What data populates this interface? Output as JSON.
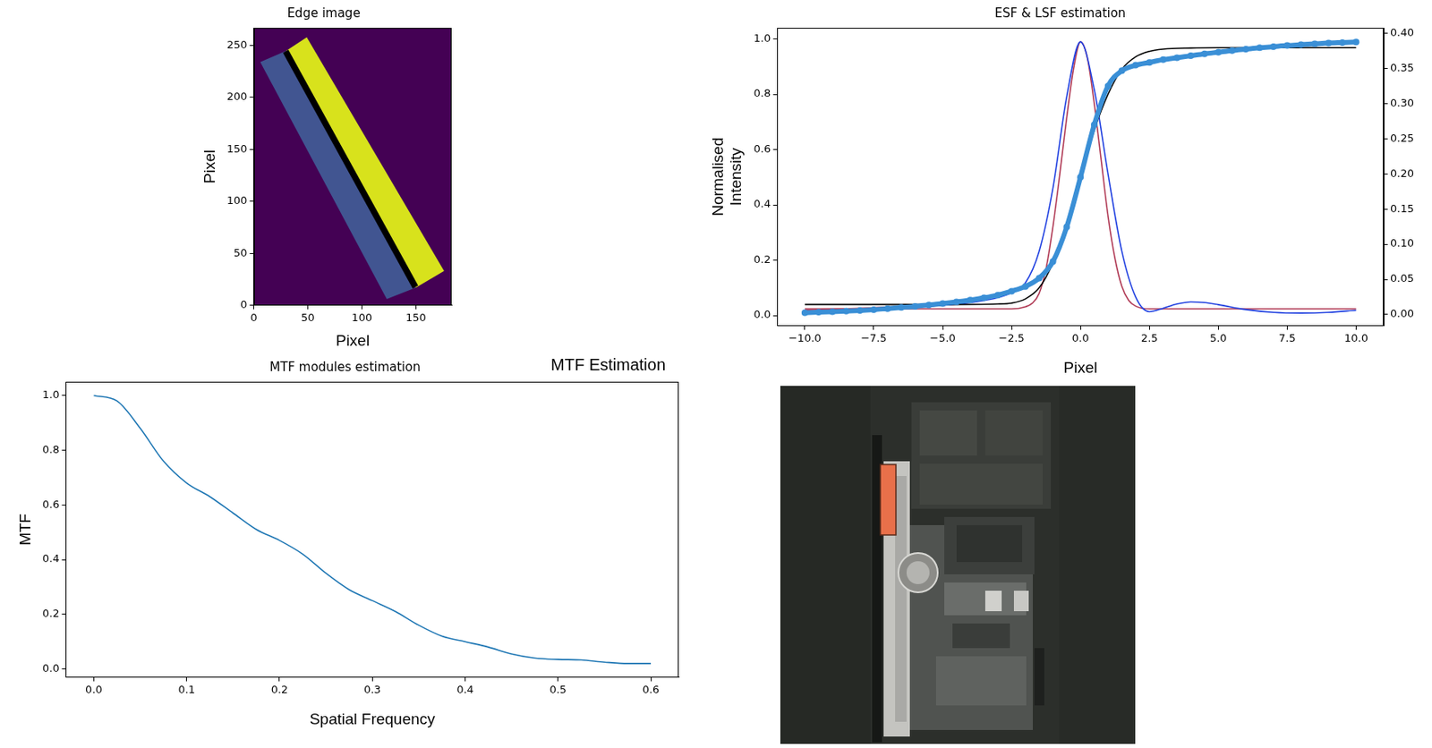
{
  "chart_data": [
    {
      "type": "image",
      "title": "Edge image",
      "x_label": "Pixel",
      "y_label": "Pixel",
      "xlim": [
        0,
        183
      ],
      "ylim": [
        0,
        267
      ],
      "xticks": [
        0,
        50,
        100,
        150
      ],
      "yticks": [
        0,
        50,
        100,
        150,
        200,
        250
      ],
      "color": "#440154",
      "regions": [
        {
          "color": "#415591",
          "x": [
            6,
            30,
            150,
            123
          ],
          "y": [
            234,
            245,
            17,
            6
          ]
        },
        {
          "color": "#d8e21c",
          "x": [
            30,
            49,
            176,
            150
          ],
          "y": [
            245,
            258,
            33,
            17
          ]
        },
        {
          "color": "#000000",
          "x": [
            27,
            32,
            152,
            147
          ],
          "y": [
            243,
            246,
            19,
            16
          ]
        }
      ]
    },
    {
      "type": "line",
      "title": "ESF & LSF estimation",
      "x_label": "Pixel",
      "y_label": "Normalised\nIntensity",
      "xlim": [
        -11,
        11
      ],
      "ylim": [
        -0.037,
        1.04
      ],
      "y2lim": [
        -0.016,
        0.408
      ],
      "xticks": [
        {
          "value": -10,
          "label": "−10.0"
        },
        {
          "value": -7.5,
          "label": "−7.5"
        },
        {
          "value": -5,
          "label": "−5.0"
        },
        {
          "value": -2.5,
          "label": "−2.5"
        },
        {
          "value": 0,
          "label": "0.0"
        },
        2.5,
        {
          "value": 5,
          "label": "5.0"
        },
        7.5,
        {
          "value": 10,
          "label": "10.0"
        }
      ],
      "yticks": [
        {
          "value": 0,
          "label": "0.0"
        },
        0.2,
        0.4,
        0.6,
        0.8,
        {
          "value": 1,
          "label": "1.0"
        }
      ],
      "y2ticks": [
        {
          "value": 0,
          "label": "0.00"
        },
        0.05,
        {
          "value": 0.1,
          "label": "0.10"
        },
        0.15,
        {
          "value": 0.2,
          "label": "0.20"
        },
        0.25,
        {
          "value": 0.3,
          "label": "0.30"
        },
        0.35,
        {
          "value": 0.4,
          "label": "0.40"
        }
      ],
      "series": [
        {
          "type": "scatter",
          "color": "#3a8fd6",
          "marker": "o",
          "line_style": "solid",
          "x": [
            -10,
            -9.5,
            -9,
            -8.5,
            -8,
            -7.5,
            -7,
            -6.5,
            -6,
            -5.5,
            -5,
            -4.5,
            -4,
            -3.5,
            -3,
            -2.5,
            -2,
            -1.5,
            -1,
            -0.5,
            0,
            0.5,
            1,
            1.5,
            2,
            2.5,
            3,
            3.5,
            4,
            4.5,
            5,
            5.5,
            6,
            6.5,
            7,
            7.5,
            8,
            8.5,
            9,
            9.5,
            10
          ],
          "values": [
            0.01,
            0.012,
            0.014,
            0.016,
            0.018,
            0.021,
            0.025,
            0.029,
            0.033,
            0.038,
            0.043,
            0.049,
            0.056,
            0.064,
            0.074,
            0.088,
            0.105,
            0.135,
            0.195,
            0.32,
            0.5,
            0.69,
            0.83,
            0.885,
            0.905,
            0.915,
            0.925,
            0.932,
            0.939,
            0.946,
            0.952,
            0.958,
            0.963,
            0.968,
            0.972,
            0.976,
            0.979,
            0.982,
            0.985,
            0.987,
            0.989
          ]
        },
        {
          "type": "line",
          "color": "#000000",
          "line_style": "solid",
          "x": [
            -10,
            -7.5,
            -5,
            -3,
            -2.5,
            -2,
            -1.5,
            -1,
            -0.5,
            0,
            0.5,
            1,
            1.5,
            2,
            2.5,
            3,
            4,
            5,
            7.5,
            10
          ],
          "values": [
            0.04,
            0.04,
            0.04,
            0.042,
            0.045,
            0.06,
            0.1,
            0.19,
            0.33,
            0.5,
            0.67,
            0.8,
            0.89,
            0.935,
            0.955,
            0.963,
            0.967,
            0.968,
            0.968,
            0.968
          ]
        },
        {
          "type": "line",
          "color": "#c0304a",
          "line_style": "solid",
          "x": [
            -10,
            -7.5,
            -5,
            -4,
            -3,
            -2.5,
            -2,
            -1.5,
            -1,
            -0.5,
            0,
            0.5,
            1,
            1.5,
            2,
            2.5,
            3,
            4,
            5,
            6,
            7.5,
            9,
            10
          ],
          "values": [
            0.02,
            0.028,
            0.044,
            0.055,
            0.073,
            0.088,
            0.107,
            0.138,
            0.2,
            0.33,
            0.51,
            0.69,
            0.83,
            0.887,
            0.905,
            0.915,
            0.924,
            0.938,
            0.951,
            0.962,
            0.975,
            0.984,
            0.987
          ]
        },
        {
          "type": "line",
          "color": "#2040e0",
          "line_style": "solid",
          "axis": "y2",
          "x": [
            -10,
            -7.5,
            -5,
            -4,
            -3,
            -2.5,
            -2,
            -1.5,
            -1,
            -0.5,
            0,
            0.5,
            1,
            1.5,
            2,
            2.5,
            3,
            3.5,
            4,
            4.5,
            5,
            6,
            7,
            8,
            9,
            10
          ],
          "values": [
            0.004,
            0.008,
            0.013,
            0.017,
            0.024,
            0.031,
            0.045,
            0.09,
            0.18,
            0.31,
            0.388,
            0.32,
            0.2,
            0.09,
            0.025,
            0.004,
            0.009,
            0.015,
            0.018,
            0.017,
            0.014,
            0.007,
            0.003,
            0.002,
            0.003,
            0.006
          ]
        },
        {
          "type": "line",
          "color": "#b03a55",
          "line_style": "solid",
          "axis": "y2",
          "x": [
            -10,
            -2.5,
            -2,
            -1.75,
            -1.5,
            -1.25,
            -1,
            -0.75,
            -0.5,
            -0.25,
            0,
            0.25,
            0.5,
            0.75,
            1,
            1.25,
            1.5,
            1.75,
            2,
            2.5,
            10
          ],
          "values": [
            0.008,
            0.008,
            0.011,
            0.016,
            0.03,
            0.065,
            0.125,
            0.2,
            0.28,
            0.35,
            0.388,
            0.365,
            0.3,
            0.22,
            0.14,
            0.08,
            0.04,
            0.02,
            0.012,
            0.008,
            0.008
          ]
        }
      ]
    },
    {
      "type": "line",
      "title": "MTF modules estimation",
      "x_label": "Spatial Frequency",
      "y_label": "MTF",
      "xlim": [
        -0.03,
        0.63
      ],
      "ylim": [
        -0.03,
        1.05
      ],
      "xticks": [
        {
          "value": 0,
          "label": "0.0"
        },
        0.1,
        0.2,
        0.3,
        0.4,
        0.5,
        0.6
      ],
      "yticks": [
        {
          "value": 0,
          "label": "0.0"
        },
        0.2,
        0.4,
        0.6,
        0.8,
        {
          "value": 1,
          "label": "1.0"
        }
      ],
      "color": "#1f77b4",
      "line_style": "solid",
      "x": [
        0,
        0.025,
        0.05,
        0.075,
        0.1,
        0.125,
        0.15,
        0.175,
        0.2,
        0.225,
        0.25,
        0.275,
        0.3,
        0.325,
        0.35,
        0.375,
        0.4,
        0.425,
        0.45,
        0.475,
        0.5,
        0.525,
        0.55,
        0.575,
        0.6
      ],
      "values": [
        1.0,
        0.98,
        0.88,
        0.76,
        0.68,
        0.63,
        0.57,
        0.51,
        0.47,
        0.42,
        0.35,
        0.29,
        0.25,
        0.21,
        0.16,
        0.12,
        0.1,
        0.08,
        0.055,
        0.04,
        0.035,
        0.033,
        0.025,
        0.02,
        0.02
      ]
    }
  ],
  "annotation": "MTF Estimation"
}
